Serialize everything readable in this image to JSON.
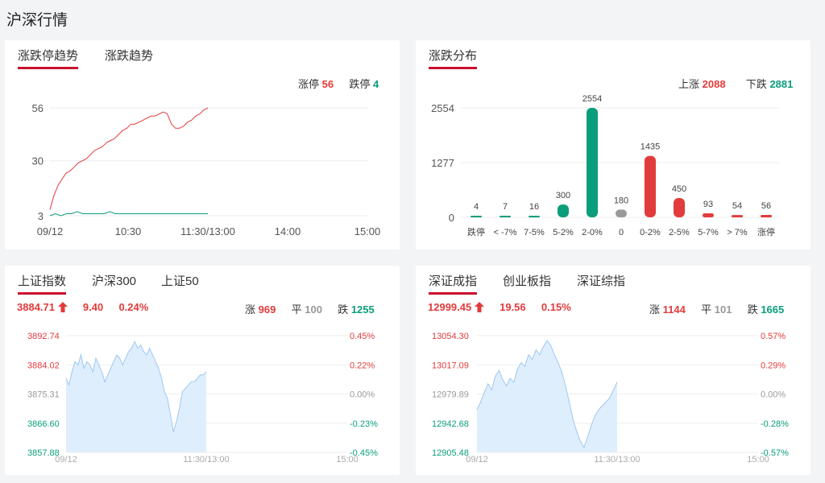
{
  "page": {
    "title": "沪深行情"
  },
  "panel1": {
    "tabs": [
      {
        "label": "涨跌停趋势",
        "active": true
      },
      {
        "label": "涨跌趋势",
        "active": false
      }
    ],
    "limit_up_label": "涨停",
    "limit_up_value": "56",
    "limit_down_label": "跌停",
    "limit_down_value": "4",
    "chart_data": {
      "type": "line",
      "yticks": [
        "56",
        "30",
        "3"
      ],
      "ylim": [
        3,
        56
      ],
      "xticks": [
        "09/12",
        "10:30",
        "11:30/13:00",
        "14:00",
        "15:00"
      ],
      "series": [
        {
          "color": "#e23b3b",
          "values": [
            6,
            13,
            18,
            21,
            24,
            25,
            27,
            29,
            30,
            31,
            33,
            35,
            36,
            37,
            39,
            40,
            41,
            43,
            45,
            46,
            48,
            48,
            49,
            50,
            51,
            52,
            52,
            53,
            54,
            53,
            48,
            46,
            46,
            47,
            49,
            50,
            52,
            53,
            55,
            56
          ]
        },
        {
          "color": "#0a9e7c",
          "values": [
            3,
            4,
            3,
            4,
            4,
            5,
            4,
            4,
            4,
            4,
            4,
            5,
            4,
            4,
            4,
            4,
            4,
            4,
            4,
            4,
            4,
            4,
            4,
            4,
            4,
            4,
            4,
            4,
            4,
            4
          ]
        }
      ]
    }
  },
  "panel2": {
    "tabs": [
      {
        "label": "涨跌分布",
        "active": true
      }
    ],
    "up_label": "上涨",
    "up_value": "2088",
    "down_label": "下跌",
    "down_value": "2881",
    "chart_data": {
      "type": "bar",
      "yticks": [
        "2554",
        "1277",
        "0"
      ],
      "ylim": [
        0,
        2554
      ],
      "categories": [
        "跌停",
        "< -7%",
        "7-5%",
        "5-2%",
        "2-0%",
        "0",
        "0-2%",
        "2-5%",
        "5-7%",
        "> 7%",
        "涨停"
      ],
      "values": [
        4,
        7,
        16,
        300,
        2554,
        180,
        1435,
        450,
        93,
        54,
        56
      ],
      "colors": [
        "#0a9e7c",
        "#0a9e7c",
        "#0a9e7c",
        "#0a9e7c",
        "#0a9e7c",
        "#999999",
        "#e23b3b",
        "#e23b3b",
        "#e23b3b",
        "#e23b3b",
        "#e23b3b"
      ]
    }
  },
  "panel3": {
    "tabs": [
      {
        "label": "上证指数",
        "active": true
      },
      {
        "label": "沪深300",
        "active": false
      },
      {
        "label": "上证50",
        "active": false
      }
    ],
    "price": "3884.71",
    "change": "9.40",
    "change_pct": "0.24%",
    "up_label": "涨",
    "up_value": "969",
    "flat_label": "平",
    "flat_value": "100",
    "down_label": "跌",
    "down_value": "1255",
    "chart_data": {
      "type": "area",
      "yticks": [
        "3892.74",
        "3884.02",
        "3875.31",
        "3866.60",
        "3857.88"
      ],
      "pct_ticks": [
        "0.45%",
        "0.22%",
        "0.00%",
        "-0.23%",
        "-0.45%"
      ],
      "ylim": [
        3857.88,
        3892.74
      ],
      "xticks": [
        "09/12",
        "11:30/13:00",
        "15:00"
      ],
      "values": [
        3880,
        3878,
        3882,
        3885,
        3884,
        3887,
        3883,
        3885,
        3884,
        3882,
        3886,
        3884,
        3882,
        3879,
        3881,
        3883,
        3885,
        3887,
        3886,
        3884,
        3886,
        3888,
        3889,
        3891,
        3889,
        3890,
        3888,
        3887,
        3889,
        3887,
        3885,
        3883,
        3880,
        3876,
        3874,
        3869,
        3864,
        3867,
        3871,
        3876,
        3877,
        3878,
        3879,
        3879,
        3880,
        3881,
        3881,
        3882
      ]
    }
  },
  "panel4": {
    "tabs": [
      {
        "label": "深证成指",
        "active": true
      },
      {
        "label": "创业板指",
        "active": false
      },
      {
        "label": "深证综指",
        "active": false
      }
    ],
    "price": "12999.45",
    "change": "19.56",
    "change_pct": "0.15%",
    "up_label": "涨",
    "up_value": "1144",
    "flat_label": "平",
    "flat_value": "101",
    "down_label": "跌",
    "down_value": "1665",
    "chart_data": {
      "type": "area",
      "yticks": [
        "13054.30",
        "13017.09",
        "12979.89",
        "12942.68",
        "12905.48"
      ],
      "pct_ticks": [
        "0.57%",
        "0.29%",
        "0.00%",
        "-0.28%",
        "-0.57%"
      ],
      "ylim": [
        12905.48,
        13054.3
      ],
      "xticks": [
        "09/12",
        "11:30/13:00",
        "15:00"
      ],
      "values": [
        12960,
        12970,
        12982,
        12993,
        12985,
        13003,
        13010,
        12998,
        12990,
        13000,
        12995,
        13012,
        13020,
        13015,
        13030,
        13024,
        13036,
        13030,
        13040,
        13048,
        13042,
        13030,
        13020,
        13008,
        12990,
        12970,
        12948,
        12933,
        12920,
        12912,
        12925,
        12940,
        12952,
        12960,
        12965,
        12970,
        12975,
        12985,
        12995
      ]
    }
  }
}
